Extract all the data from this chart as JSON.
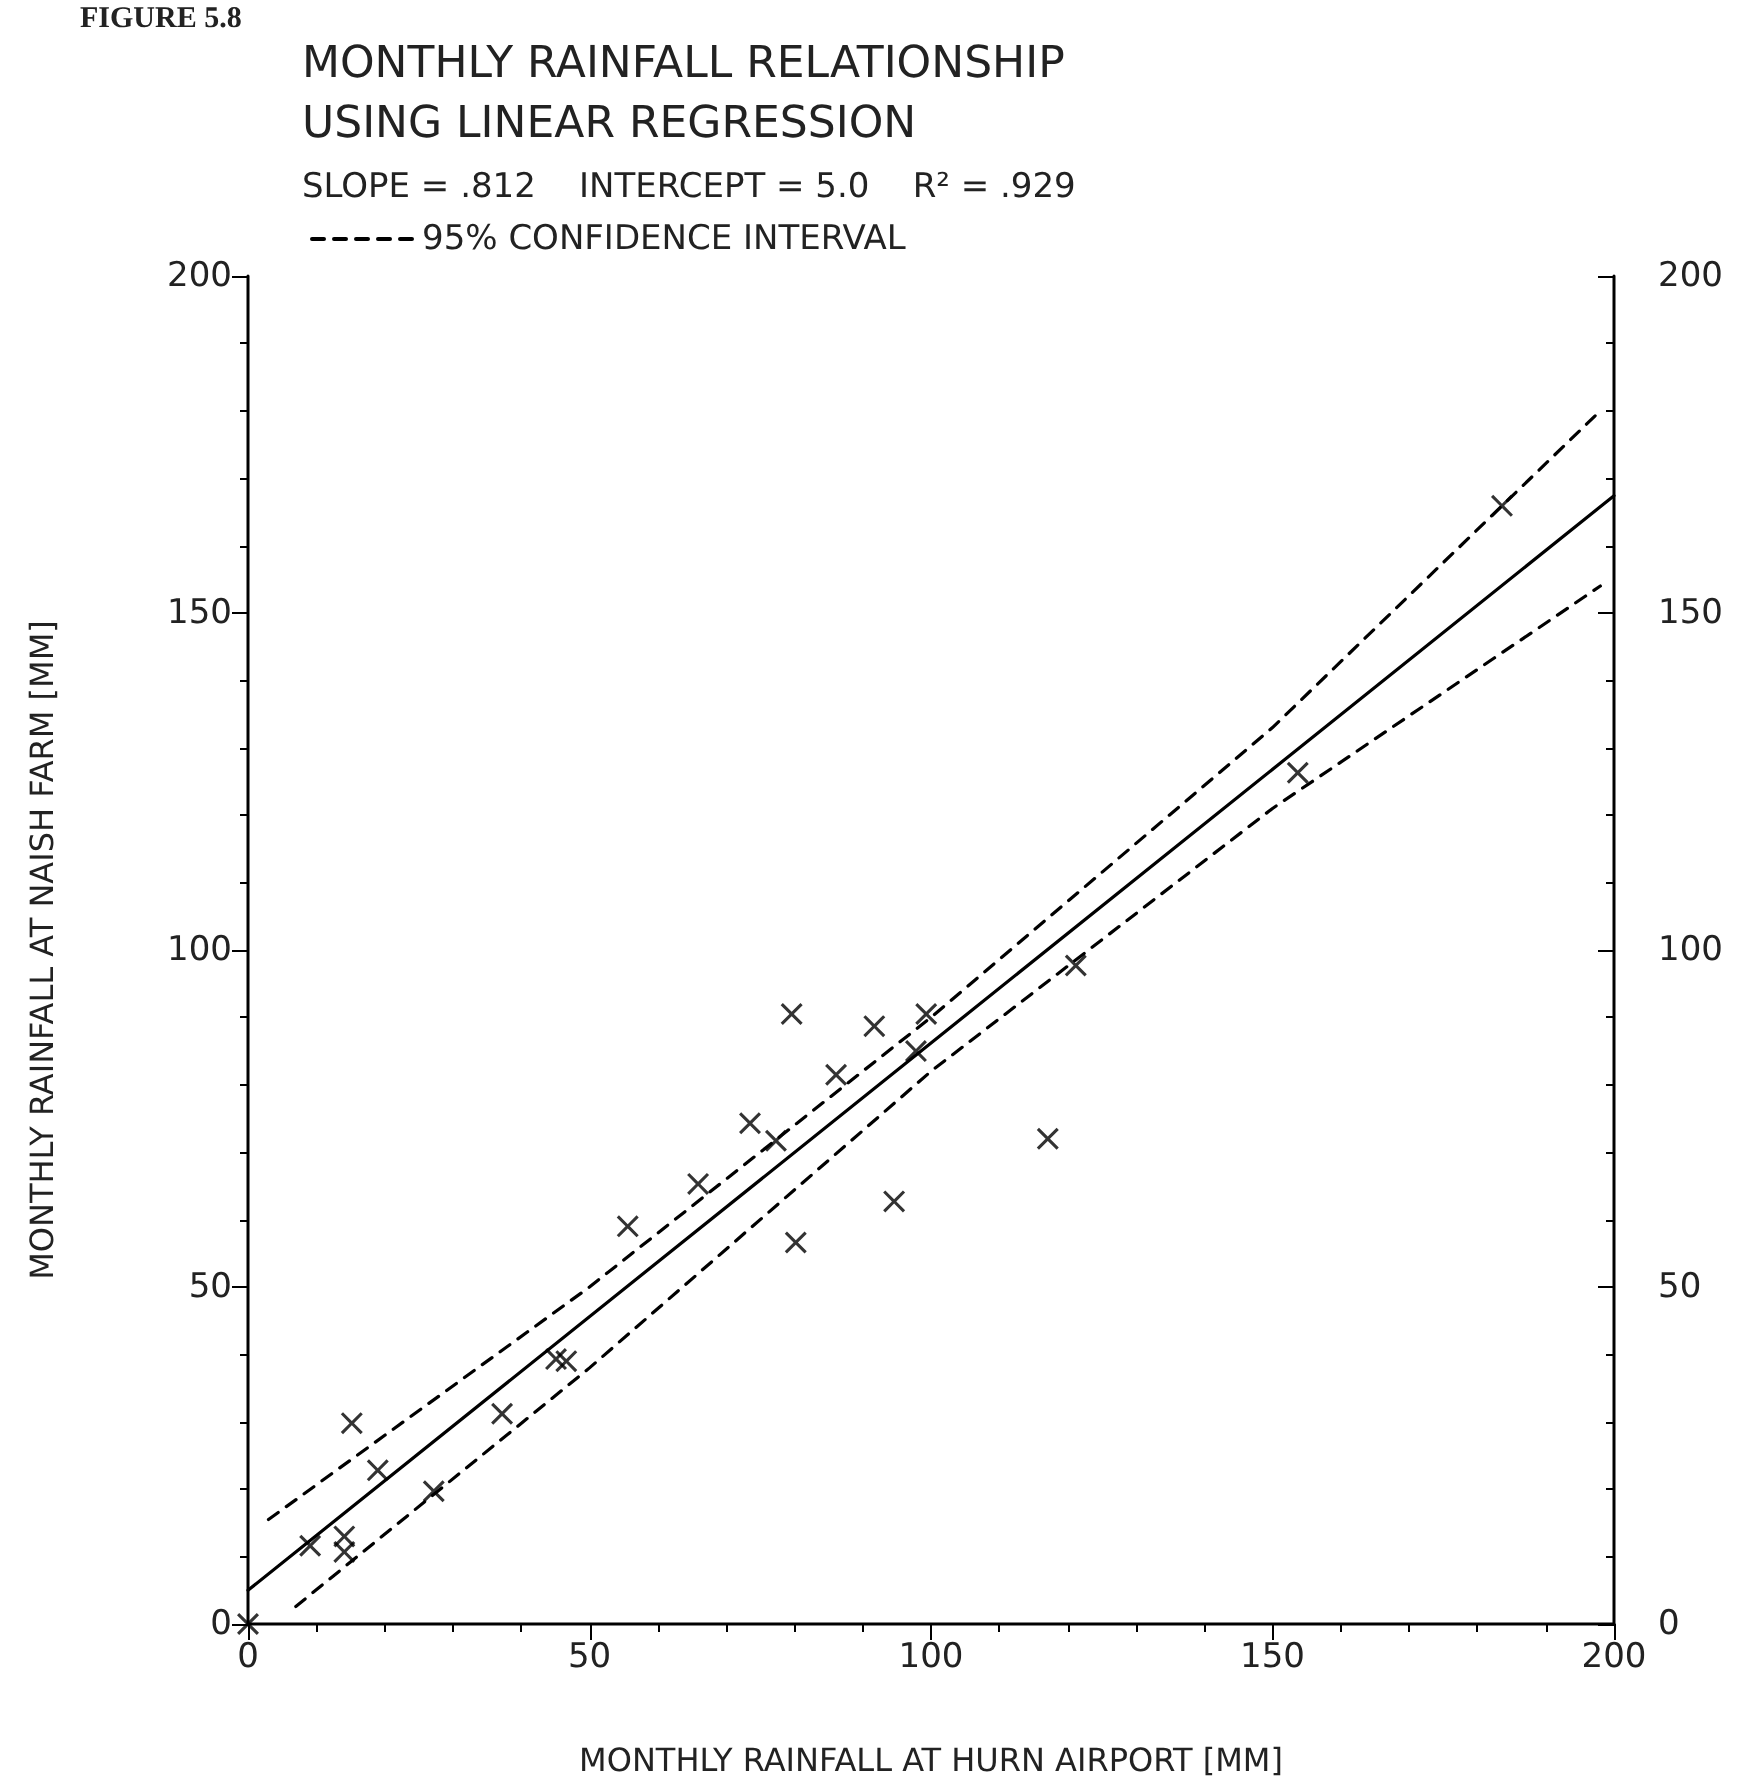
{
  "chart_data": {
    "type": "scatter",
    "title": "MONTHLY RAINFALL RELATIONSHIP\nUSING LINEAR REGRESSION",
    "subtitle": "SLOPE = .812    INTERCEPT = 5.0    R² = .929",
    "annotations": [
      "FIGURE 5.8"
    ],
    "xlabel": "MONTHLY RAINFALL AT HURN AIRPORT [MM]",
    "ylabel": "MONTHLY RAINFALL AT NAISH FARM [MM]",
    "series": [
      {
        "marker": "cross",
        "color": "#000000",
        "x": [
          0,
          9.1,
          15.2,
          14.1,
          14.1,
          19,
          27.2,
          37.2,
          45.1,
          46.6,
          55.6,
          65.9,
          73.5,
          77.3,
          80.2,
          79.6,
          86.1,
          91.7,
          94.6,
          97.8,
          99.3,
          117.1,
          121.2,
          153.7,
          183.6
        ],
        "values": [
          0,
          11.6,
          29.8,
          13,
          10.7,
          22.8,
          19.7,
          31.2,
          39.3,
          39,
          59,
          65.3,
          74.3,
          71.7,
          56.6,
          90.5,
          81.5,
          88.7,
          62.7,
          85,
          90.5,
          72,
          97.7,
          126.3,
          165.9
        ]
      },
      {
        "type": "line",
        "marker": "none",
        "color": "#000000",
        "line_style": "solid",
        "x": [
          0,
          200
        ],
        "values": [
          5,
          167.4
        ]
      },
      {
        "type": "line",
        "marker": "none",
        "name": "95% CONFIDENCE INTERVAL",
        "color": "#000000",
        "line_style": "dashed",
        "x": [
          3,
          50,
          100,
          150,
          198
        ],
        "values": [
          15.5,
          50,
          90,
          133,
          180
        ]
      },
      {
        "type": "line",
        "marker": "none",
        "color": "#000000",
        "line_style": "dashed",
        "x": [
          7,
          50,
          100,
          150,
          198
        ],
        "values": [
          2.6,
          38,
          82,
          121,
          154
        ]
      }
    ],
    "legend": "top left",
    "grid": false,
    "xlim": [
      0,
      200
    ],
    "xticks": [
      0,
      50,
      100,
      150,
      200
    ],
    "ylim": [
      0,
      200
    ],
    "yticks": [
      0,
      50,
      100,
      150,
      200
    ],
    "y2lim": [
      0,
      200
    ],
    "y2ticks": [
      0,
      50,
      100,
      150,
      200
    ]
  }
}
